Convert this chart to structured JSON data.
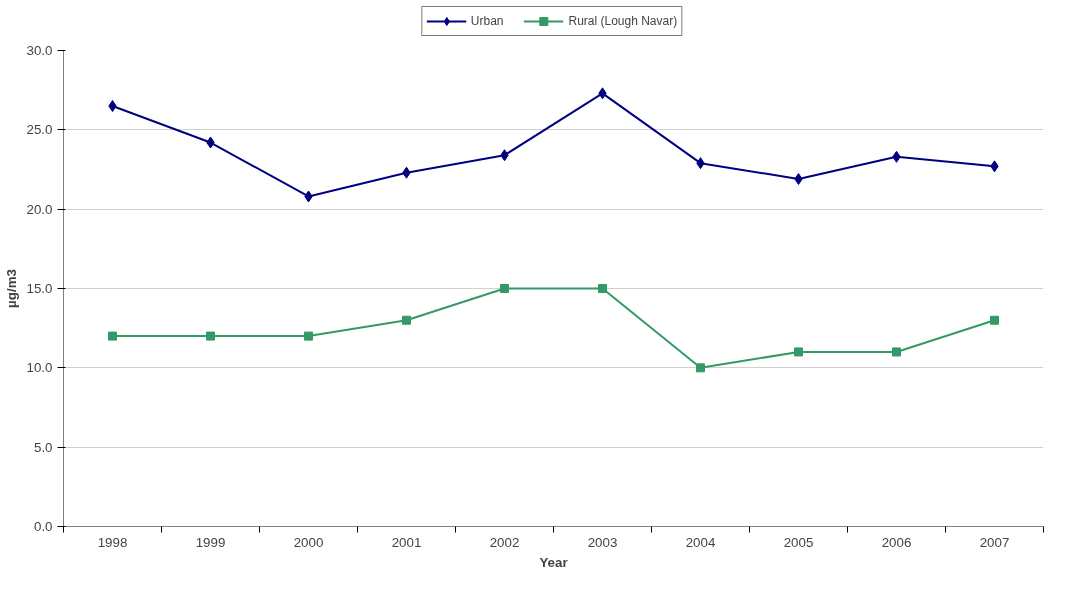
{
  "chart_data": {
    "type": "line",
    "xlabel": "Year",
    "ylabel": "µg/m3",
    "categories": [
      "1998",
      "1999",
      "2000",
      "2001",
      "2002",
      "2003",
      "2004",
      "2005",
      "2006",
      "2007"
    ],
    "series": [
      {
        "name": "Urban",
        "color": "#000080",
        "marker": "diamond",
        "values": [
          26.5,
          24.2,
          20.8,
          22.3,
          23.4,
          27.3,
          22.9,
          21.9,
          23.3,
          22.7
        ]
      },
      {
        "name": "Rural (Lough Navar)",
        "color": "#339966",
        "marker": "square",
        "values": [
          12,
          12,
          12,
          13,
          15,
          15,
          10,
          11,
          11,
          13
        ]
      }
    ],
    "ylim": [
      0,
      30
    ],
    "yticks": [
      {
        "value": 0,
        "label": "0.0"
      },
      {
        "value": 5,
        "label": "5.0"
      },
      {
        "value": 10,
        "label": "10.0"
      },
      {
        "value": 15,
        "label": "15.0"
      },
      {
        "value": 20,
        "label": "20.0"
      },
      {
        "value": 25,
        "label": "25.0"
      },
      {
        "value": 30,
        "label": "30.0"
      }
    ],
    "grid": "y",
    "legend": "top",
    "line_style": "solid"
  }
}
